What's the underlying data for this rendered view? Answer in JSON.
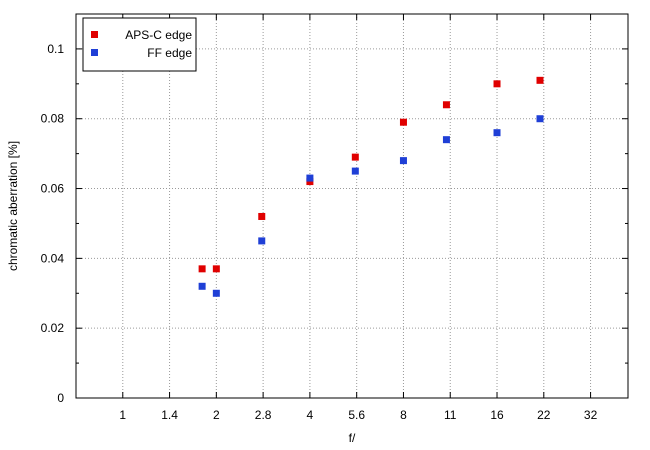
{
  "chart_data": {
    "type": "scatter",
    "title": "",
    "xlabel": "f/",
    "ylabel": "chromatic aberration [%]",
    "x_categories": [
      "1",
      "1.4",
      "2",
      "2.8",
      "4",
      "5.6",
      "8",
      "11",
      "16",
      "22",
      "32"
    ],
    "ylim": [
      0,
      0.11
    ],
    "y_ticks": [
      "0",
      "0.02",
      "0.04",
      "0.06",
      "0.08",
      "0.1"
    ],
    "grid": true,
    "legend_position": "top-left",
    "series": [
      {
        "name": "APS-C edge",
        "color": "#e00000",
        "points": [
          {
            "x": "1.8",
            "y": 0.037
          },
          {
            "x": "2",
            "y": 0.037
          },
          {
            "x": "2.8",
            "y": 0.052
          },
          {
            "x": "4",
            "y": 0.062
          },
          {
            "x": "5.6",
            "y": 0.069
          },
          {
            "x": "8",
            "y": 0.079
          },
          {
            "x": "11",
            "y": 0.084
          },
          {
            "x": "16",
            "y": 0.09
          },
          {
            "x": "22",
            "y": 0.091
          }
        ]
      },
      {
        "name": "FF edge",
        "color": "#1f3fd6",
        "points": [
          {
            "x": "1.8",
            "y": 0.032
          },
          {
            "x": "2",
            "y": 0.03
          },
          {
            "x": "2.8",
            "y": 0.045
          },
          {
            "x": "4",
            "y": 0.063
          },
          {
            "x": "5.6",
            "y": 0.065
          },
          {
            "x": "8",
            "y": 0.068
          },
          {
            "x": "11",
            "y": 0.074
          },
          {
            "x": "16",
            "y": 0.076
          },
          {
            "x": "22",
            "y": 0.08
          }
        ]
      }
    ]
  }
}
